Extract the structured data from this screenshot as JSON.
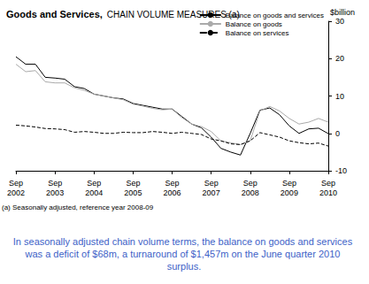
{
  "chart_data": {
    "type": "line",
    "title": "Goods and Services,",
    "subtitle": "CHAIN VOLUME MEASURES (a)",
    "y_label": "$billion",
    "footnote": "(a) Seasonally adjusted, reference year 2008-09",
    "caption": "In seasonally adjusted chain volume terms, the balance on goods and services was a deficit of $68m, a turnaround of $1,457m on the June quarter 2010 surplus.",
    "categories": [
      "Sep 2002",
      null,
      null,
      null,
      "Sep 2003",
      null,
      null,
      null,
      "Sep 2004",
      null,
      null,
      null,
      "Sep 2005",
      null,
      null,
      null,
      "Sep 2006",
      null,
      null,
      null,
      "Sep 2007",
      null,
      null,
      null,
      "Sep 2008",
      null,
      null,
      null,
      "Sep 2009",
      null,
      null,
      null,
      "Sep 2010"
    ],
    "series": [
      {
        "name": "Balance on goods and services",
        "color": "#000000",
        "line_style": "solid",
        "values": [
          20.5,
          18.5,
          18.5,
          15,
          14.8,
          14.5,
          12.5,
          12,
          10.5,
          10,
          9.5,
          9.2,
          8,
          7.5,
          7,
          6.5,
          6.5,
          4.5,
          2.5,
          1.5,
          -1,
          -4,
          -5,
          -5.8,
          0,
          6.2,
          6.8,
          5,
          2,
          0,
          1.2,
          1.389,
          -0.068
        ]
      },
      {
        "name": "Balance on goods",
        "color": "#aaaaaa",
        "line_style": "solid",
        "values": [
          18.5,
          16.5,
          16.8,
          13.8,
          13.5,
          13.5,
          12.2,
          11.5,
          10.5,
          10,
          9.5,
          9,
          7.8,
          7.3,
          6.7,
          6.3,
          6.5,
          4.2,
          2.5,
          1.8,
          0.5,
          -2,
          -2.5,
          -3,
          -2,
          6,
          7.2,
          6,
          4,
          2.5,
          3,
          4,
          3
        ]
      },
      {
        "name": "Balance on services",
        "color": "#000000",
        "line_style": "dashed",
        "values": [
          2.2,
          2,
          1.7,
          1.3,
          1.2,
          1,
          0.3,
          0.5,
          0.3,
          0,
          0,
          0.3,
          0.2,
          0.2,
          0.5,
          0.3,
          0,
          0.3,
          0,
          -0.3,
          -1.5,
          -2,
          -2.8,
          -3,
          -2,
          0.2,
          -0.4,
          -1,
          -2,
          -2.5,
          -2.8,
          -2.6,
          -3.4
        ]
      }
    ],
    "ylim": [
      -10,
      30
    ],
    "yticks": [
      -10,
      0,
      10,
      20,
      30
    ],
    "grid": false,
    "legend": "upper right"
  }
}
